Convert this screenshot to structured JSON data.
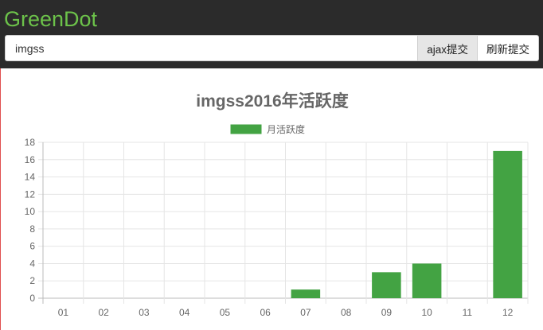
{
  "app": {
    "brand": "GreenDot"
  },
  "search": {
    "value": "imgss"
  },
  "buttons": {
    "ajax_label": "ajax提交",
    "refresh_label": "刷新提交"
  },
  "colors": {
    "bar": "#43a343",
    "brand": "#6cc24a",
    "header_bg": "#2b2b2b",
    "grid": "#e5e5e5",
    "text": "#666666"
  },
  "chart_data": {
    "type": "bar",
    "title": "imgss2016年活跃度",
    "categories": [
      "01",
      "02",
      "03",
      "04",
      "05",
      "06",
      "07",
      "08",
      "09",
      "10",
      "11",
      "12"
    ],
    "series": [
      {
        "name": "月活跃度",
        "values": [
          0,
          0,
          0,
          0,
          0,
          0,
          1,
          0,
          3,
          4,
          0,
          17
        ]
      }
    ],
    "yticks": [
      0,
      2,
      4,
      6,
      8,
      10,
      12,
      14,
      16,
      18
    ],
    "ylim": [
      0,
      18
    ],
    "grid": true,
    "legend": "top-center"
  }
}
